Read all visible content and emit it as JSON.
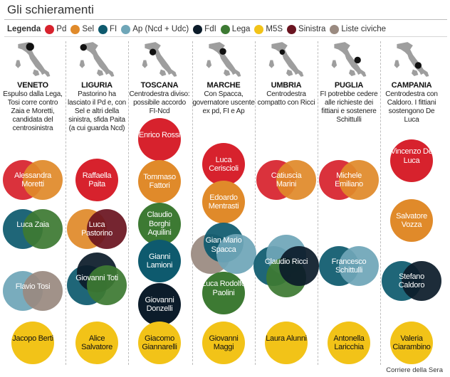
{
  "title": "Gli schieramenti",
  "source": "Corriere della Sera",
  "legend": {
    "title": "Legenda",
    "items": [
      {
        "key": "pd",
        "label": "Pd",
        "color": "#d7222d"
      },
      {
        "key": "sel",
        "label": "Sel",
        "color": "#e08a2a"
      },
      {
        "key": "fi",
        "label": "FI",
        "color": "#0e5a6e"
      },
      {
        "key": "ap",
        "label": "Ap (Ncd + Udc)",
        "color": "#6fa6b8"
      },
      {
        "key": "fdi",
        "label": "FdI",
        "color": "#0c1c2a"
      },
      {
        "key": "lega",
        "label": "Lega",
        "color": "#3d7a33"
      },
      {
        "key": "m5s",
        "label": "M5S",
        "color": "#f2c318"
      },
      {
        "key": "sinistra",
        "label": "Sinistra",
        "color": "#6a1420"
      },
      {
        "key": "civiche",
        "label": "Liste civiche",
        "color": "#9a8a80"
      }
    ]
  },
  "regions": [
    {
      "name": "VENETO",
      "description": "Espulso dalla Lega, Tosi corre contro Zaia e Moretti, candidata del centrosinistra",
      "candidates": [
        {
          "name": "Alessandra Moretti",
          "parties": [
            "pd",
            "sel"
          ]
        },
        {
          "name": "Luca Zaia",
          "parties": [
            "fi",
            "lega"
          ]
        },
        {
          "name": "Flavio Tosi",
          "parties": [
            "ap",
            "civiche"
          ]
        },
        {
          "name": "Jacopo Berti",
          "parties": [
            "m5s"
          ]
        }
      ]
    },
    {
      "name": "LIGURIA",
      "description": "Pastorino ha lasciato il Pd e, con Sel e altri della sinistra, sfida Paita (a cui guarda Ncd)",
      "candidates": [
        {
          "name": "Raffaella Paita",
          "parties": [
            "pd"
          ]
        },
        {
          "name": "Luca Pastorino",
          "parties": [
            "sel",
            "sinistra"
          ]
        },
        {
          "name": "Giovanni Toti",
          "parties": [
            "fi",
            "fdi",
            "lega"
          ]
        },
        {
          "name": "Alice Salvatore",
          "parties": [
            "m5s"
          ]
        }
      ]
    },
    {
      "name": "TOSCANA",
      "description": "Centrodestra diviso: possibile accordo FI-Ncd",
      "candidates": [
        {
          "name": "Enrico Rossi",
          "parties": [
            "pd"
          ]
        },
        {
          "name": "Tommaso Fattori",
          "parties": [
            "sel"
          ]
        },
        {
          "name": "Claudio Borghi Aquilini",
          "parties": [
            "lega"
          ]
        },
        {
          "name": "Gianni Lamioni",
          "parties": [
            "fi"
          ]
        },
        {
          "name": "Giovanni Donzelli",
          "parties": [
            "fdi"
          ]
        },
        {
          "name": "Giacomo Giannarelli",
          "parties": [
            "m5s"
          ]
        }
      ]
    },
    {
      "name": "MARCHE",
      "description": "Con Spacca, governatore uscente ex pd, FI e Ap",
      "candidates": [
        {
          "name": "Luca Ceriscioli",
          "parties": [
            "pd"
          ]
        },
        {
          "name": "Edoardo Mentrasti",
          "parties": [
            "sel"
          ]
        },
        {
          "name": "Gian Mario Spacca",
          "parties": [
            "civiche",
            "fi",
            "ap"
          ]
        },
        {
          "name": "Luca Rodolfo Paolini",
          "parties": [
            "lega"
          ]
        },
        {
          "name": "Giovanni Maggi",
          "parties": [
            "m5s"
          ]
        }
      ]
    },
    {
      "name": "UMBRIA",
      "description": "Centrodestra compatto con Ricci",
      "candidates": [
        {
          "name": "Catiuscia Marini",
          "parties": [
            "pd",
            "sel"
          ]
        },
        {
          "name": "Claudio Ricci",
          "parties": [
            "fi",
            "ap",
            "lega",
            "fdi"
          ]
        },
        {
          "name": "Laura Alunni",
          "parties": [
            "m5s"
          ]
        }
      ]
    },
    {
      "name": "PUGLIA",
      "description": "FI potrebbe cedere alle richieste dei fittiani e sostenere Schittulli",
      "candidates": [
        {
          "name": "Michele Emiliano",
          "parties": [
            "pd",
            "sel"
          ]
        },
        {
          "name": "Francesco Schittulli",
          "parties": [
            "fi",
            "ap"
          ]
        },
        {
          "name": "Antonella Laricchia",
          "parties": [
            "m5s"
          ]
        }
      ]
    },
    {
      "name": "CAMPANIA",
      "description": "Centrodestra con Caldoro. I fittiani sostengono De Luca",
      "candidates": [
        {
          "name": "Vincenzo De Luca",
          "parties": [
            "pd"
          ]
        },
        {
          "name": "Salvatore Vozza",
          "parties": [
            "sel"
          ]
        },
        {
          "name": "Stefano Caldoro",
          "parties": [
            "fi",
            "fdi"
          ]
        },
        {
          "name": "Valeria Ciarambino",
          "parties": [
            "m5s"
          ]
        }
      ]
    }
  ]
}
